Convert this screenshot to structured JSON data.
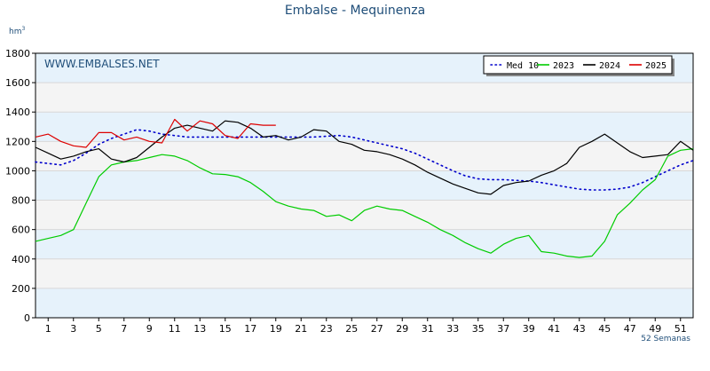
{
  "chart_data": {
    "type": "line",
    "title": "Embalse - Mequinenza",
    "y_unit": "hm",
    "y_unit_exp": "3",
    "watermark": "WWW.EMBALSES.NET",
    "x_note": "52 Semanas",
    "xlim": [
      0,
      52
    ],
    "ylim": [
      0,
      1800
    ],
    "y_ticks": [
      "0",
      "200",
      "400",
      "600",
      "800",
      "1000",
      "1200",
      "1400",
      "1600",
      "1800"
    ],
    "x_ticks": [
      "1",
      "3",
      "5",
      "7",
      "9",
      "11",
      "13",
      "15",
      "17",
      "19",
      "21",
      "23",
      "25",
      "27",
      "29",
      "31",
      "33",
      "35",
      "37",
      "39",
      "41",
      "43",
      "45",
      "47",
      "49",
      "51"
    ],
    "legend_position": "top-right",
    "grid": true,
    "series": [
      {
        "name": "Med 10",
        "color": "#0000cc",
        "dash": "dotted",
        "x": [
          0,
          1,
          2,
          3,
          4,
          5,
          6,
          7,
          8,
          9,
          10,
          11,
          12,
          13,
          14,
          15,
          16,
          17,
          18,
          19,
          20,
          21,
          22,
          23,
          24,
          25,
          26,
          27,
          28,
          29,
          30,
          31,
          32,
          33,
          34,
          35,
          36,
          37,
          38,
          39,
          40,
          41,
          42,
          43,
          44,
          45,
          46,
          47,
          48,
          49,
          50,
          51,
          52
        ],
        "y": [
          1060,
          1050,
          1040,
          1070,
          1120,
          1180,
          1220,
          1250,
          1280,
          1270,
          1250,
          1240,
          1230,
          1230,
          1230,
          1230,
          1230,
          1230,
          1230,
          1230,
          1230,
          1230,
          1230,
          1235,
          1240,
          1230,
          1210,
          1190,
          1170,
          1150,
          1120,
          1080,
          1040,
          1000,
          965,
          945,
          940,
          940,
          935,
          930,
          920,
          905,
          890,
          875,
          870,
          870,
          875,
          890,
          920,
          960,
          1000,
          1040,
          1070
        ]
      },
      {
        "name": "2023",
        "color": "#00cc00",
        "dash": "solid",
        "x": [
          0,
          1,
          2,
          3,
          4,
          5,
          6,
          7,
          8,
          9,
          10,
          11,
          12,
          13,
          14,
          15,
          16,
          17,
          18,
          19,
          20,
          21,
          22,
          23,
          24,
          25,
          26,
          27,
          28,
          29,
          30,
          31,
          32,
          33,
          34,
          35,
          36,
          37,
          38,
          39,
          40,
          41,
          42,
          43,
          44,
          45,
          46,
          47,
          48,
          49,
          50,
          51,
          52
        ],
        "y": [
          520,
          540,
          560,
          600,
          780,
          960,
          1040,
          1060,
          1070,
          1090,
          1110,
          1100,
          1070,
          1020,
          980,
          975,
          960,
          920,
          860,
          790,
          760,
          740,
          730,
          690,
          700,
          660,
          730,
          760,
          740,
          730,
          690,
          650,
          600,
          560,
          510,
          470,
          440,
          500,
          540,
          560,
          450,
          440,
          420,
          410,
          420,
          520,
          700,
          780,
          870,
          940,
          1100,
          1140,
          1150
        ]
      },
      {
        "name": "2024",
        "color": "#000000",
        "dash": "solid",
        "x": [
          0,
          1,
          2,
          3,
          4,
          5,
          6,
          7,
          8,
          9,
          10,
          11,
          12,
          13,
          14,
          15,
          16,
          17,
          18,
          19,
          20,
          21,
          22,
          23,
          24,
          25,
          26,
          27,
          28,
          29,
          30,
          31,
          32,
          33,
          34,
          35,
          36,
          37,
          38,
          39,
          40,
          41,
          42,
          43,
          44,
          45,
          46,
          47,
          48,
          49,
          50,
          51,
          52
        ],
        "y": [
          1160,
          1120,
          1080,
          1100,
          1130,
          1150,
          1080,
          1060,
          1090,
          1160,
          1230,
          1290,
          1310,
          1290,
          1270,
          1340,
          1330,
          1290,
          1230,
          1240,
          1210,
          1230,
          1280,
          1270,
          1200,
          1180,
          1140,
          1130,
          1110,
          1080,
          1040,
          990,
          950,
          910,
          880,
          850,
          840,
          900,
          920,
          930,
          970,
          1000,
          1050,
          1160,
          1200,
          1250,
          1190,
          1130,
          1090,
          1100,
          1110,
          1200,
          1140
        ]
      },
      {
        "name": "2025",
        "color": "#dd0000",
        "dash": "solid",
        "x": [
          0,
          1,
          2,
          3,
          4,
          5,
          6,
          7,
          8,
          9,
          10,
          11,
          12,
          13,
          14,
          15,
          16,
          17,
          18,
          19
        ],
        "y": [
          1230,
          1250,
          1200,
          1170,
          1160,
          1260,
          1260,
          1210,
          1230,
          1200,
          1190,
          1350,
          1270,
          1340,
          1320,
          1240,
          1220,
          1320,
          1310,
          1310
        ]
      }
    ]
  }
}
